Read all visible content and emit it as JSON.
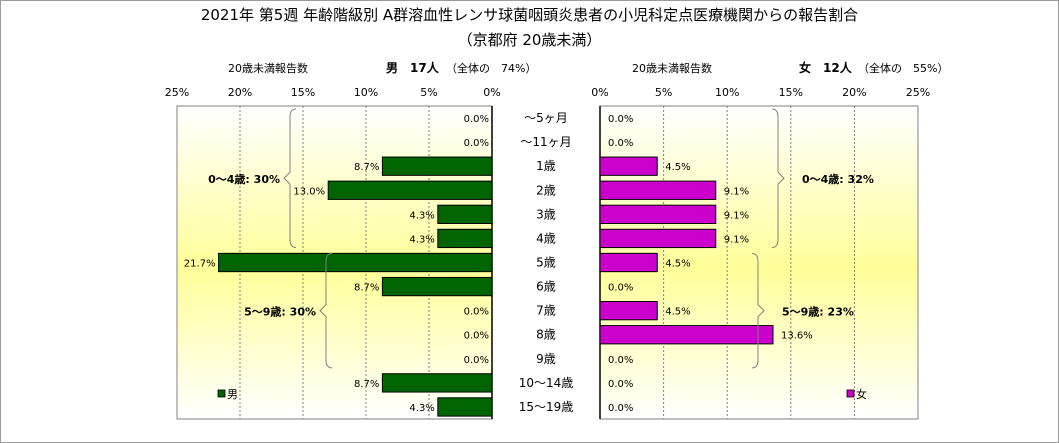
{
  "title": "2021年 第5週 年齢階級別 A群溶血性レンサ球菌咽頭炎患者の小児科定点医療機関からの報告割合",
  "subtitle": "（京都府 20歳未満）",
  "chart_data": {
    "type": "bar",
    "orientation": "horizontal-butterfly",
    "categories": [
      "～5ヶ月",
      "～11ヶ月",
      "1歳",
      "2歳",
      "3歳",
      "4歳",
      "5歳",
      "6歳",
      "7歳",
      "8歳",
      "9歳",
      "10～14歳",
      "15～19歳"
    ],
    "panels": [
      {
        "id": "male",
        "header_left": "20歳未満報告数",
        "header_title": "男　17人",
        "header_note": "（全体の　74%）",
        "legend": "男",
        "color": "#006400",
        "values": [
          0.0,
          0.0,
          8.7,
          13.0,
          4.3,
          4.3,
          21.7,
          8.7,
          0.0,
          0.0,
          0.0,
          8.7,
          4.3
        ],
        "value_labels": [
          "0.0%",
          "0.0%",
          "8.7%",
          "13.0%",
          "4.3%",
          "4.3%",
          "21.7%",
          "8.7%",
          "0.0%",
          "0.0%",
          "0.0%",
          "8.7%",
          "4.3%"
        ],
        "xlim": [
          0,
          25
        ],
        "tick_labels": [
          "0%",
          "5%",
          "10%",
          "15%",
          "20%",
          "25%"
        ],
        "brackets": [
          {
            "label": "0～4歳: 30%",
            "from": 0,
            "to": 5
          },
          {
            "label": "5～9歳: 30%",
            "from": 6,
            "to": 10
          }
        ]
      },
      {
        "id": "female",
        "header_left": "20歳未満報告数",
        "header_title": "女　12人",
        "header_note": "（全体の　55%）",
        "legend": "女",
        "color": "#cc00cc",
        "values": [
          0.0,
          0.0,
          4.5,
          9.1,
          9.1,
          9.1,
          4.5,
          0.0,
          4.5,
          13.6,
          0.0,
          0.0,
          0.0
        ],
        "value_labels": [
          "0.0%",
          "0.0%",
          "4.5%",
          "9.1%",
          "9.1%",
          "9.1%",
          "4.5%",
          "0.0%",
          "4.5%",
          "13.6%",
          "0.0%",
          "0.0%",
          "0.0%"
        ],
        "xlim": [
          0,
          25
        ],
        "tick_labels": [
          "0%",
          "5%",
          "10%",
          "15%",
          "20%",
          "25%"
        ],
        "brackets": [
          {
            "label": "0～4歳: 32%",
            "from": 0,
            "to": 5
          },
          {
            "label": "5～9歳: 23%",
            "from": 6,
            "to": 10
          }
        ]
      }
    ],
    "colors": {
      "gradient_top": "#ffffff",
      "gradient_mid": "#ffff99",
      "grid": "#808080",
      "axis": "#000000"
    }
  }
}
